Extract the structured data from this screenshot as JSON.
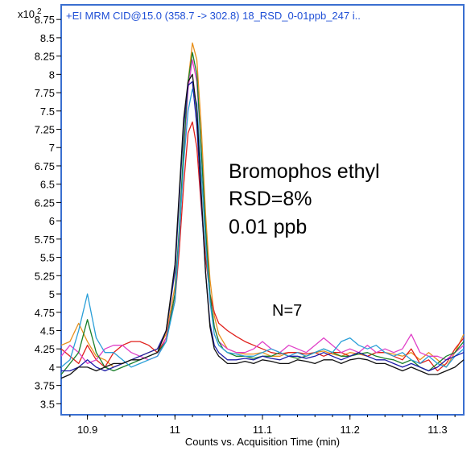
{
  "chart_data": {
    "type": "line",
    "header": "+EI MRM CID@15.0 (358.7 -> 302.8) 18_RSD_0-01ppb_247 i..",
    "y_multiplier": "x10",
    "y_multiplier_exp": "2",
    "xlabel": "Counts vs. Acquisition Time (min)",
    "xlim": [
      10.87,
      11.33
    ],
    "ylim": [
      3.35,
      8.95
    ],
    "x_ticks": [
      10.9,
      11,
      11.1,
      11.2,
      11.3
    ],
    "x_tick_labels": [
      "10.9",
      "11",
      "11.1",
      "11.2",
      "11.3"
    ],
    "y_ticks": [
      3.5,
      3.75,
      4,
      4.25,
      4.5,
      4.75,
      5,
      5.25,
      5.5,
      5.75,
      6,
      6.25,
      6.5,
      6.75,
      7,
      7.25,
      7.5,
      7.75,
      8,
      8.25,
      8.5,
      8.75
    ],
    "y_tick_labels": [
      "3.5",
      "3.75",
      "4",
      "4.25",
      "4.5",
      "4.75",
      "5",
      "5.25",
      "5.5",
      "5.75",
      "6",
      "6.25",
      "6.5",
      "6.75",
      "7",
      "7.25",
      "7.5",
      "7.75",
      "8",
      "8.25",
      "8.5",
      "8.75"
    ],
    "annotations": {
      "compound": "Bromophos ethyl",
      "rsd": "RSD=8%",
      "conc": "0.01 ppb",
      "n": "N=7"
    },
    "series": [
      {
        "color": "#e8901c",
        "x": [
          10.87,
          10.88,
          10.89,
          10.9,
          10.91,
          10.92,
          10.93,
          10.94,
          10.95,
          10.96,
          10.97,
          10.98,
          10.99,
          11.0,
          11.005,
          11.01,
          11.015,
          11.02,
          11.025,
          11.03,
          11.035,
          11.04,
          11.045,
          11.05,
          11.055,
          11.06,
          11.07,
          11.08,
          11.09,
          11.1,
          11.11,
          11.12,
          11.13,
          11.14,
          11.15,
          11.16,
          11.17,
          11.18,
          11.19,
          11.2,
          11.21,
          11.22,
          11.23,
          11.24,
          11.25,
          11.26,
          11.27,
          11.28,
          11.29,
          11.3,
          11.31,
          11.32,
          11.33
        ],
        "y": [
          4.3,
          4.35,
          4.6,
          4.35,
          4.15,
          4.1,
          4.0,
          4.05,
          4.1,
          4.15,
          4.2,
          4.25,
          4.45,
          5.1,
          5.8,
          6.9,
          7.9,
          8.43,
          8.2,
          7.3,
          6.1,
          5.2,
          4.7,
          4.45,
          4.35,
          4.25,
          4.2,
          4.18,
          4.18,
          4.2,
          4.15,
          4.15,
          4.2,
          4.2,
          4.15,
          4.2,
          4.22,
          4.18,
          4.15,
          4.2,
          4.18,
          4.15,
          4.2,
          4.2,
          4.18,
          4.15,
          4.2,
          4.1,
          4.2,
          4.1,
          4.0,
          4.2,
          4.45
        ]
      },
      {
        "color": "#e0201c",
        "x": [
          10.87,
          10.88,
          10.89,
          10.9,
          10.91,
          10.92,
          10.93,
          10.94,
          10.95,
          10.96,
          10.97,
          10.98,
          10.99,
          11.0,
          11.005,
          11.01,
          11.015,
          11.02,
          11.025,
          11.03,
          11.035,
          11.04,
          11.045,
          11.05,
          11.055,
          11.06,
          11.07,
          11.08,
          11.09,
          11.1,
          11.11,
          11.12,
          11.13,
          11.14,
          11.15,
          11.16,
          11.17,
          11.18,
          11.19,
          11.2,
          11.21,
          11.22,
          11.23,
          11.24,
          11.25,
          11.26,
          11.27,
          11.28,
          11.29,
          11.3,
          11.31,
          11.32,
          11.33
        ],
        "y": [
          4.25,
          4.15,
          4.05,
          4.3,
          4.1,
          4.0,
          4.2,
          4.3,
          4.35,
          4.35,
          4.3,
          4.2,
          4.4,
          4.9,
          5.6,
          6.5,
          7.2,
          7.35,
          7.0,
          6.2,
          5.5,
          5.0,
          4.75,
          4.6,
          4.55,
          4.5,
          4.42,
          4.35,
          4.3,
          4.25,
          4.2,
          4.18,
          4.2,
          4.2,
          4.18,
          4.2,
          4.15,
          4.2,
          4.2,
          4.15,
          4.2,
          4.15,
          4.2,
          4.2,
          4.15,
          4.1,
          4.25,
          4.05,
          4.1,
          3.95,
          4.05,
          4.25,
          4.4
        ]
      },
      {
        "color": "#e040c8",
        "x": [
          10.87,
          10.88,
          10.89,
          10.9,
          10.91,
          10.92,
          10.93,
          10.94,
          10.95,
          10.96,
          10.97,
          10.98,
          10.99,
          11.0,
          11.005,
          11.01,
          11.015,
          11.02,
          11.025,
          11.03,
          11.035,
          11.04,
          11.045,
          11.05,
          11.055,
          11.06,
          11.07,
          11.08,
          11.09,
          11.1,
          11.11,
          11.12,
          11.13,
          11.14,
          11.15,
          11.16,
          11.17,
          11.18,
          11.19,
          11.2,
          11.21,
          11.22,
          11.23,
          11.24,
          11.25,
          11.26,
          11.27,
          11.28,
          11.29,
          11.3,
          11.31,
          11.32,
          11.33
        ],
        "y": [
          4.15,
          4.3,
          4.2,
          4.05,
          4.1,
          4.25,
          4.3,
          4.3,
          4.2,
          4.15,
          4.1,
          4.15,
          4.4,
          5.0,
          5.8,
          6.9,
          7.8,
          8.2,
          7.9,
          7.0,
          5.9,
          5.0,
          4.55,
          4.35,
          4.3,
          4.25,
          4.2,
          4.2,
          4.25,
          4.35,
          4.25,
          4.2,
          4.3,
          4.25,
          4.2,
          4.3,
          4.4,
          4.3,
          4.2,
          4.25,
          4.2,
          4.3,
          4.2,
          4.25,
          4.2,
          4.25,
          4.45,
          4.2,
          4.15,
          4.15,
          4.1,
          4.2,
          4.3
        ]
      },
      {
        "color": "#1a7f2a",
        "x": [
          10.87,
          10.88,
          10.89,
          10.9,
          10.91,
          10.92,
          10.93,
          10.94,
          10.95,
          10.96,
          10.97,
          10.98,
          10.99,
          11.0,
          11.005,
          11.01,
          11.015,
          11.02,
          11.025,
          11.03,
          11.035,
          11.04,
          11.045,
          11.05,
          11.055,
          11.06,
          11.07,
          11.08,
          11.09,
          11.1,
          11.11,
          11.12,
          11.13,
          11.14,
          11.15,
          11.16,
          11.17,
          11.18,
          11.19,
          11.2,
          11.21,
          11.22,
          11.23,
          11.24,
          11.25,
          11.26,
          11.27,
          11.28,
          11.29,
          11.3,
          11.31,
          11.32,
          11.33
        ],
        "y": [
          3.9,
          4.05,
          4.2,
          4.65,
          4.2,
          4.0,
          3.95,
          4.0,
          4.05,
          4.1,
          4.15,
          4.2,
          4.35,
          5.0,
          5.9,
          7.0,
          7.9,
          8.3,
          8.0,
          7.0,
          5.9,
          5.0,
          4.55,
          4.35,
          4.25,
          4.2,
          4.15,
          4.15,
          4.12,
          4.15,
          4.15,
          4.2,
          4.15,
          4.12,
          4.15,
          4.2,
          4.25,
          4.2,
          4.15,
          4.15,
          4.18,
          4.2,
          4.15,
          4.12,
          4.1,
          4.05,
          4.1,
          4.0,
          3.95,
          4.05,
          4.15,
          4.2,
          4.35
        ]
      },
      {
        "color": "#2a9fd8",
        "x": [
          10.87,
          10.88,
          10.89,
          10.9,
          10.91,
          10.92,
          10.93,
          10.94,
          10.95,
          10.96,
          10.97,
          10.98,
          10.99,
          11.0,
          11.005,
          11.01,
          11.015,
          11.02,
          11.025,
          11.03,
          11.035,
          11.04,
          11.045,
          11.05,
          11.055,
          11.06,
          11.07,
          11.08,
          11.09,
          11.1,
          11.11,
          11.12,
          11.13,
          11.14,
          11.15,
          11.16,
          11.17,
          11.18,
          11.19,
          11.2,
          11.21,
          11.22,
          11.23,
          11.24,
          11.25,
          11.26,
          11.27,
          11.28,
          11.29,
          11.3,
          11.31,
          11.32,
          11.33
        ],
        "y": [
          4.0,
          4.1,
          4.5,
          5.0,
          4.4,
          4.2,
          4.2,
          4.1,
          4.0,
          4.05,
          4.1,
          4.15,
          4.35,
          4.9,
          5.8,
          6.8,
          7.5,
          7.8,
          7.6,
          6.7,
          5.7,
          4.9,
          4.45,
          4.3,
          4.25,
          4.2,
          4.18,
          4.15,
          4.15,
          4.2,
          4.25,
          4.2,
          4.15,
          4.2,
          4.15,
          4.2,
          4.25,
          4.2,
          4.35,
          4.4,
          4.3,
          4.25,
          4.3,
          4.2,
          4.15,
          4.2,
          4.1,
          4.05,
          4.15,
          4.05,
          4.0,
          4.15,
          4.25
        ]
      },
      {
        "color": "#1c1ca8",
        "x": [
          10.87,
          10.88,
          10.89,
          10.9,
          10.91,
          10.92,
          10.93,
          10.94,
          10.95,
          10.96,
          10.97,
          10.98,
          10.99,
          11.0,
          11.005,
          11.01,
          11.015,
          11.02,
          11.025,
          11.03,
          11.035,
          11.04,
          11.045,
          11.05,
          11.055,
          11.06,
          11.07,
          11.08,
          11.09,
          11.1,
          11.11,
          11.12,
          11.13,
          11.14,
          11.15,
          11.16,
          11.17,
          11.18,
          11.19,
          11.2,
          11.21,
          11.22,
          11.23,
          11.24,
          11.25,
          11.26,
          11.27,
          11.28,
          11.29,
          11.3,
          11.31,
          11.32,
          11.33
        ],
        "y": [
          3.95,
          3.95,
          4.0,
          4.1,
          4.0,
          3.95,
          4.0,
          4.05,
          4.1,
          4.15,
          4.2,
          4.25,
          4.5,
          5.3,
          6.3,
          7.3,
          7.85,
          7.9,
          7.3,
          6.3,
          5.3,
          4.6,
          4.3,
          4.2,
          4.15,
          4.1,
          4.1,
          4.12,
          4.1,
          4.15,
          4.12,
          4.1,
          4.15,
          4.15,
          4.12,
          4.15,
          4.2,
          4.15,
          4.1,
          4.15,
          4.2,
          4.15,
          4.1,
          4.1,
          4.05,
          4.0,
          4.05,
          4.0,
          3.95,
          4.0,
          4.1,
          4.15,
          4.2
        ]
      },
      {
        "color": "#111111",
        "x": [
          10.87,
          10.88,
          10.89,
          10.9,
          10.91,
          10.92,
          10.93,
          10.94,
          10.95,
          10.96,
          10.97,
          10.98,
          10.99,
          11.0,
          11.005,
          11.01,
          11.015,
          11.02,
          11.025,
          11.03,
          11.035,
          11.04,
          11.045,
          11.05,
          11.055,
          11.06,
          11.07,
          11.08,
          11.09,
          11.1,
          11.11,
          11.12,
          11.13,
          11.14,
          11.15,
          11.16,
          11.17,
          11.18,
          11.19,
          11.2,
          11.21,
          11.22,
          11.23,
          11.24,
          11.25,
          11.26,
          11.27,
          11.28,
          11.29,
          11.3,
          11.31,
          11.32,
          11.33
        ],
        "y": [
          3.85,
          3.9,
          4.0,
          4.0,
          3.95,
          4.0,
          4.05,
          4.05,
          4.1,
          4.1,
          4.15,
          4.2,
          4.5,
          5.4,
          6.4,
          7.4,
          7.9,
          8.0,
          7.5,
          6.4,
          5.3,
          4.55,
          4.25,
          4.15,
          4.1,
          4.05,
          4.05,
          4.08,
          4.05,
          4.1,
          4.08,
          4.05,
          4.05,
          4.1,
          4.08,
          4.05,
          4.1,
          4.1,
          4.05,
          4.1,
          4.12,
          4.1,
          4.05,
          4.05,
          4.0,
          3.95,
          4.0,
          3.95,
          3.9,
          3.9,
          3.95,
          4.0,
          4.1
        ]
      }
    ]
  }
}
